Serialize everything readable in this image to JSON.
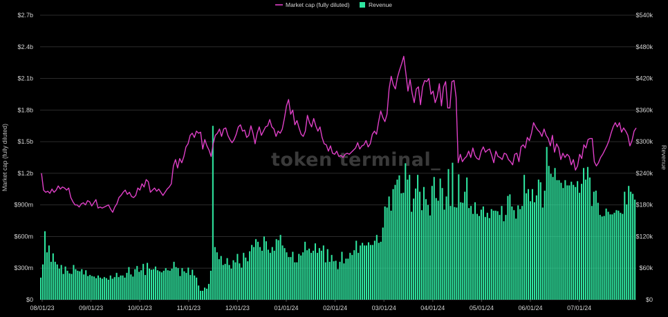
{
  "chart_data": {
    "type": "bar+line",
    "watermark": "token terminal_",
    "legend": {
      "placement": "top-center",
      "items": [
        {
          "label": "Market cap (fully diluted)",
          "color": "#e040c8",
          "kind": "line"
        },
        {
          "label": "Revenue",
          "color": "#2fe6a0",
          "kind": "bar"
        }
      ]
    },
    "y_left": {
      "label": "Market cap (fully diluted)",
      "range": [
        0,
        2700000000
      ],
      "ticks": [
        0,
        300000000,
        600000000,
        900000000,
        1200000000,
        1500000000,
        1800000000,
        2100000000,
        2400000000,
        2700000000
      ],
      "tick_labels": [
        "$0",
        "$300m",
        "$600m",
        "$900m",
        "$1.2b",
        "$1.5b",
        "$1.8b",
        "$2.1b",
        "$2.4b",
        "$2.7b"
      ]
    },
    "y_right": {
      "label": "Revenue",
      "range": [
        0,
        540000
      ],
      "ticks": [
        0,
        60000,
        120000,
        180000,
        240000,
        300000,
        360000,
        420000,
        480000,
        540000
      ],
      "tick_labels": [
        "$0",
        "$60k",
        "$120k",
        "$180k",
        "$240k",
        "$300k",
        "$360k",
        "$420k",
        "$480k",
        "$540k"
      ]
    },
    "x_axis": {
      "tick_labels": [
        "08/01/23",
        "09/01/23",
        "10/01/23",
        "11/01/23",
        "12/01/23",
        "01/01/24",
        "02/01/24",
        "03/01/24",
        "04/01/24",
        "05/01/24",
        "06/01/24",
        "07/01/24"
      ]
    },
    "grid": true,
    "market_cap_b": [
      1.2,
      1.04,
      1.02,
      1.03,
      1.01,
      1.05,
      1.02,
      1.04,
      1.08,
      1.05,
      1.07,
      1.06,
      1.04,
      1.06,
      0.97,
      0.93,
      0.9,
      0.9,
      0.88,
      0.91,
      0.92,
      0.9,
      0.94,
      0.93,
      0.89,
      0.92,
      0.95,
      0.87,
      0.88,
      0.87,
      0.88,
      0.89,
      0.9,
      0.86,
      0.83,
      0.88,
      0.91,
      0.97,
      0.99,
      1.02,
      1.04,
      1.0,
      1.02,
      0.98,
      0.97,
      0.99,
      1.06,
      1.04,
      1.1,
      1.07,
      1.14,
      1.12,
      1.02,
      1.04,
      1.06,
      1.03,
      1.05,
      1.02,
      0.99,
      1.02,
      1.05,
      1.07,
      1.1,
      1.27,
      1.33,
      1.25,
      1.34,
      1.3,
      1.36,
      1.45,
      1.48,
      1.56,
      1.58,
      1.54,
      1.6,
      1.58,
      1.59,
      1.43,
      1.52,
      1.46,
      1.42,
      1.36,
      1.48,
      1.56,
      1.58,
      1.62,
      1.55,
      1.62,
      1.63,
      1.56,
      1.52,
      1.49,
      1.52,
      1.57,
      1.64,
      1.66,
      1.6,
      1.61,
      1.54,
      1.56,
      1.65,
      1.58,
      1.48,
      1.58,
      1.64,
      1.56,
      1.6,
      1.64,
      1.65,
      1.71,
      1.64,
      1.62,
      1.55,
      1.6,
      1.58,
      1.62,
      1.72,
      1.84,
      1.9,
      1.76,
      1.8,
      1.66,
      1.7,
      1.63,
      1.57,
      1.55,
      1.6,
      1.75,
      1.68,
      1.64,
      1.72,
      1.65,
      1.6,
      1.64,
      1.54,
      1.48,
      1.47,
      1.41,
      1.46,
      1.39,
      1.38,
      1.41,
      1.36,
      1.37,
      1.35,
      1.38,
      1.39,
      1.38,
      1.4,
      1.42,
      1.44,
      1.49,
      1.43,
      1.46,
      1.47,
      1.51,
      1.45,
      1.48,
      1.57,
      1.6,
      1.57,
      1.69,
      1.79,
      1.73,
      1.69,
      1.76,
      2.0,
      2.12,
      2.04,
      2.0,
      2.11,
      2.18,
      2.24,
      2.31,
      2.15,
      1.98,
      2.09,
      1.96,
      1.87,
      2.0,
      2.02,
      1.85,
      2.02,
      2.08,
      2.07,
      2.1,
      1.95,
      1.98,
      1.87,
      1.93,
      2.05,
      1.84,
      2.02,
      2.07,
      1.82,
      1.82,
      2.07,
      2.08,
      1.92,
      1.3,
      1.38,
      1.31,
      1.34,
      1.36,
      1.41,
      1.35,
      1.44,
      1.37,
      1.34,
      1.33,
      1.41,
      1.45,
      1.4,
      1.42,
      1.43,
      1.37,
      1.3,
      1.41,
      1.36,
      1.35,
      1.33,
      1.39,
      1.38,
      1.33,
      1.31,
      1.28,
      1.38,
      1.39,
      1.31,
      1.45,
      1.47,
      1.44,
      1.54,
      1.51,
      1.58,
      1.68,
      1.64,
      1.61,
      1.59,
      1.55,
      1.62,
      1.56,
      1.53,
      1.46,
      1.56,
      1.4,
      1.48,
      1.44,
      1.33,
      1.39,
      1.35,
      1.38,
      1.36,
      1.28,
      1.33,
      1.23,
      1.27,
      1.38,
      1.34,
      1.47,
      1.44,
      1.52,
      1.53,
      1.53,
      1.31,
      1.27,
      1.3,
      1.35,
      1.38,
      1.42,
      1.46,
      1.51,
      1.58,
      1.64,
      1.68,
      1.64,
      1.68,
      1.59,
      1.63,
      1.6,
      1.56,
      1.46,
      1.51,
      1.6,
      1.63
    ],
    "revenue_k": [
      42,
      67,
      130,
      90,
      103,
      72,
      88,
      72,
      67,
      59,
      66,
      49,
      63,
      55,
      50,
      49,
      66,
      58,
      55,
      54,
      58,
      48,
      56,
      45,
      47,
      45,
      44,
      41,
      46,
      42,
      40,
      43,
      41,
      38,
      46,
      40,
      43,
      51,
      43,
      46,
      46,
      42,
      51,
      62,
      48,
      44,
      58,
      64,
      53,
      56,
      68,
      47,
      70,
      59,
      57,
      58,
      63,
      56,
      54,
      52,
      55,
      60,
      56,
      55,
      59,
      72,
      62,
      60,
      45,
      60,
      54,
      51,
      61,
      47,
      57,
      46,
      42,
      27,
      17,
      17,
      23,
      21,
      30,
      55,
      330,
      100,
      90,
      77,
      83,
      66,
      68,
      79,
      66,
      59,
      75,
      71,
      87,
      69,
      61,
      89,
      80,
      73,
      92,
      104,
      100,
      115,
      110,
      100,
      93,
      120,
      111,
      95,
      89,
      100,
      93,
      115,
      113,
      123,
      103,
      98,
      90,
      81,
      81,
      91,
      71,
      71,
      87,
      84,
      90,
      110,
      94,
      97,
      89,
      93,
      107,
      89,
      98,
      93,
      103,
      71,
      96,
      72,
      85,
      73,
      74,
      58,
      72,
      91,
      69,
      78,
      78,
      89,
      85,
      94,
      112,
      89,
      103,
      108,
      103,
      103,
      109,
      104,
      104,
      112,
      123,
      108,
      110,
      137,
      177,
      175,
      196,
      169,
      210,
      218,
      228,
      236,
      202,
      203,
      259,
      228,
      237,
      167,
      192,
      211,
      237,
      205,
      170,
      214,
      191,
      180,
      160,
      216,
      233,
      193,
      188,
      230,
      212,
      171,
      196,
      248,
      178,
      260,
      176,
      175,
      238,
      185,
      184,
      205,
      232,
      174,
      178,
      163,
      185,
      163,
      159,
      171,
      177,
      157,
      165,
      155,
      172,
      169,
      169,
      168,
      161,
      178,
      149,
      161,
      197,
      200,
      177,
      170,
      154,
      179,
      172,
      178,
      237,
      202,
      210,
      187,
      210,
      185,
      198,
      228,
      223,
      175,
      207,
      290,
      254,
      239,
      233,
      250,
      227,
      227,
      222,
      212,
      227,
      217,
      217,
      224,
      218,
      214,
      225,
      203,
      220,
      250,
      228,
      252,
      232,
      178,
      205,
      207,
      184,
      161,
      158,
      159,
      173,
      167,
      162,
      162,
      165,
      170,
      169,
      165,
      163,
      205,
      181,
      216,
      205,
      201,
      190
    ]
  }
}
